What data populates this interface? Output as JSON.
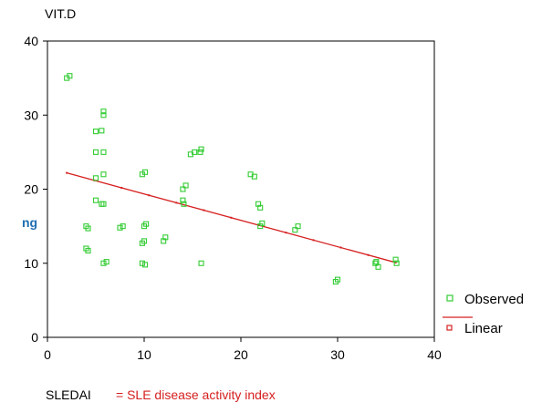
{
  "chart_data": {
    "type": "scatter",
    "y_title": "VIT.D",
    "y_unit": "ng",
    "x_title": "SLEDAI",
    "x_note": "= SLE disease activity index",
    "xlim": [
      0,
      40
    ],
    "ylim": [
      0,
      40
    ],
    "x_ticks": [
      0,
      10,
      20,
      30,
      40
    ],
    "y_ticks": [
      0,
      10,
      20,
      30,
      40
    ],
    "grid": false,
    "legend_position": "right",
    "series": [
      {
        "name": "Observed",
        "color": "#33cc33",
        "marker": "hollow-square",
        "points": [
          [
            2,
            35
          ],
          [
            2.3,
            35.3
          ],
          [
            4,
            15
          ],
          [
            4.2,
            14.7
          ],
          [
            4,
            12
          ],
          [
            4.2,
            11.7
          ],
          [
            5,
            27.8
          ],
          [
            5.6,
            27.9
          ],
          [
            5.8,
            30.5
          ],
          [
            5.8,
            30
          ],
          [
            5,
            25
          ],
          [
            5.8,
            25
          ],
          [
            5,
            21.5
          ],
          [
            5.8,
            22
          ],
          [
            5,
            18.5
          ],
          [
            5.6,
            18
          ],
          [
            5.8,
            18
          ],
          [
            5.8,
            10
          ],
          [
            6.1,
            10.2
          ],
          [
            7.5,
            14.8
          ],
          [
            7.8,
            15
          ],
          [
            9.8,
            22
          ],
          [
            10.1,
            22.3
          ],
          [
            10,
            15
          ],
          [
            10.2,
            15.3
          ],
          [
            9.8,
            12.7
          ],
          [
            10,
            13
          ],
          [
            9.8,
            10
          ],
          [
            10.1,
            9.8
          ],
          [
            12,
            13
          ],
          [
            12.2,
            13.5
          ],
          [
            14,
            18.5
          ],
          [
            14.1,
            18
          ],
          [
            14,
            20
          ],
          [
            14.3,
            20.5
          ],
          [
            14.8,
            24.7
          ],
          [
            15.2,
            25
          ],
          [
            15.8,
            25
          ],
          [
            15.9,
            25.4
          ],
          [
            15.9,
            10
          ],
          [
            21,
            22
          ],
          [
            21.4,
            21.7
          ],
          [
            21.8,
            18
          ],
          [
            22,
            17.5
          ],
          [
            22,
            15
          ],
          [
            22.2,
            15.4
          ],
          [
            25.6,
            14.5
          ],
          [
            25.9,
            15
          ],
          [
            29.8,
            7.5
          ],
          [
            30,
            7.8
          ],
          [
            33.9,
            10
          ],
          [
            34.2,
            9.5
          ],
          [
            34,
            10.2
          ],
          [
            36,
            10.5
          ],
          [
            36.1,
            10
          ]
        ]
      },
      {
        "name": "Linear",
        "color": "#d62020",
        "marker": "hollow-square",
        "line": [
          [
            2,
            22.2
          ],
          [
            36,
            10.1
          ]
        ]
      }
    ]
  }
}
